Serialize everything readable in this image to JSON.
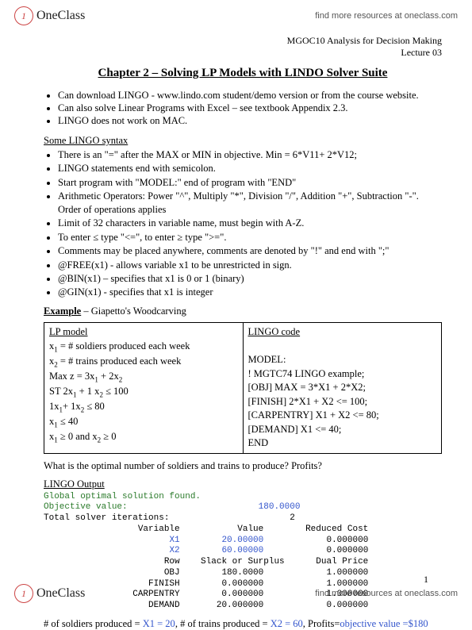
{
  "brand": {
    "initial": "1",
    "name": "OneClass",
    "find": "find more resources at oneclass.com"
  },
  "header": {
    "course": "MGOC10 Analysis for Decision Making",
    "lecture": "Lecture 03"
  },
  "title": "Chapter 2 – Solving LP Models with LINDO Solver Suite",
  "intro": [
    "Can download LINGO - www.lindo.com student/demo version or from the course website.",
    "Can also solve Linear Programs with Excel – see textbook Appendix 2.3.",
    "LINGO does not work on MAC."
  ],
  "syntax_label": "Some LINGO syntax",
  "syntax": [
    "There is an \"=\" after the MAX or MIN in objective.  Min = 6*V11+ 2*V12;",
    "LINGO statements end with semicolon.",
    "Start program with \"MODEL:\" end of program with \"END\"",
    "Arithmetic Operators:  Power \"^\", Multiply \"*\", Division \"/\", Addition \"+\", Subtraction \"-\". Order of operations applies",
    "Limit of 32 characters in variable name, must begin with A-Z.",
    "To enter ≤  type \"<=\", to enter ≥ type \">=\".",
    "Comments may be placed anywhere, comments are denoted by \"!\" and end with \";\"",
    "@FREE(x1) -  allows variable x1 to be unrestricted in sign.",
    "@BIN(x1) – specifies that x1 is 0 or 1 (binary)",
    "@GIN(x1) - specifies that x1 is integer"
  ],
  "example_label": "Example",
  "example_name": " – Giapetto's Woodcarving",
  "model": {
    "left_hdr": "LP model",
    "x1": "x",
    "x1sub": "1",
    "x1def": " = # soldiers produced each week",
    "x2": "x",
    "x2sub": "2",
    "x2def": " = # trains produced each week",
    "maxz": "Max z = 3x",
    "maxz_cont": " + 2x",
    "st": "ST    2x",
    "st1": " + 1 x",
    "st1r": " ≤ 100",
    "st2a": "        1x",
    "st2b": "+ 1x",
    "st2r": " ≤ 80",
    "st3": "        x",
    "st3r": " ≤ 40",
    "nn": "        x",
    "nn_mid": " ≥ 0 and x",
    "nn_end": " ≥ 0",
    "right_hdr": "LINGO code",
    "r1": "MODEL:",
    "r2": "! MGTC74 LINGO example;",
    "r3": "[OBJ] MAX = 3*X1 + 2*X2;",
    "r4": "[FINISH] 2*X1 + X2 <= 100;",
    "r5": "[CARPENTRY] X1 + X2 <= 80;",
    "r6": "[DEMAND] X1 <= 40;",
    "r7": "END"
  },
  "question": "What is the optimal number of soldiers and trains to produce?   Profits?",
  "output_label": "LINGO Output",
  "output": {
    "l1": "Global optimal solution found.",
    "l2a": "Objective value:",
    "l2b": "180.0000",
    "l3a": "Total solver iterations:",
    "l3b": "2",
    "h1": "Variable           Value        Reduced Cost",
    "r1a": "X1",
    "r1b": "20.00000",
    "r1c": "0.000000",
    "r2a": "X2",
    "r2b": "60.00000",
    "r2c": "0.000000",
    "h2": "Row    Slack or Surplus      Dual Price",
    "s1": "OBJ        180.0000            1.000000",
    "s2": "FINISH        0.000000            1.000000",
    "s3": "CARPENTRY        0.000000            1.000000",
    "s4": "DEMAND       20.000000            0.000000"
  },
  "summary": {
    "p1": "# of soldiers produced = ",
    "x1": "X1 = 20",
    "p2": ", # of trains produced = ",
    "x2": "X2 = 60",
    "p3": ", Profits=",
    "ov": "objective value",
    "p4": " =$180"
  },
  "pagenum": "1"
}
